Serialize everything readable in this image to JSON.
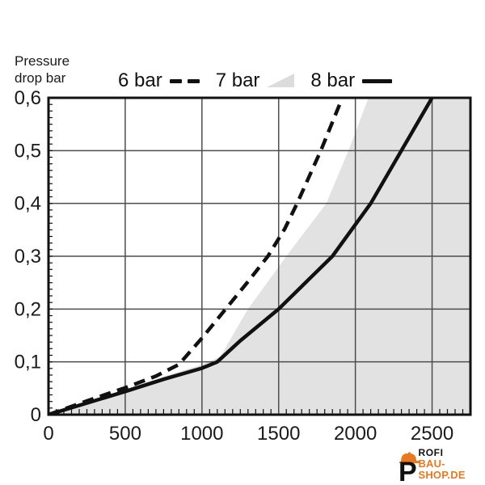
{
  "axis_title": {
    "line1": "Pressure",
    "line2": "drop bar"
  },
  "legend": [
    {
      "label": "6 bar",
      "marker": "dashed-line"
    },
    {
      "label": "7 bar",
      "marker": "gray-area"
    },
    {
      "label": "8 bar",
      "marker": "solid-line"
    }
  ],
  "colors": {
    "curve": "#111111",
    "area_fill": "#e2e2e2",
    "grid": "#4d4d4d",
    "frame": "#111111",
    "tick": "#111111",
    "text": "#1a1a1a",
    "logo_orange": "#e8791e"
  },
  "chart_data": {
    "type": "line",
    "title": "",
    "xlabel": "",
    "ylabel": "Pressure drop bar",
    "xlim": [
      0,
      2750
    ],
    "ylim": [
      0,
      0.6
    ],
    "grid": true,
    "legend_position": "top",
    "x_ticks": [
      {
        "value": 0,
        "label": "0"
      },
      {
        "value": 500,
        "label": "500"
      },
      {
        "value": 1000,
        "label": "1000"
      },
      {
        "value": 1500,
        "label": "1500"
      },
      {
        "value": 2000,
        "label": "2000"
      },
      {
        "value": 2500,
        "label": "2500"
      }
    ],
    "y_ticks": [
      {
        "value": 0,
        "label": "0"
      },
      {
        "value": 0.1,
        "label": "0,1"
      },
      {
        "value": 0.2,
        "label": "0,2"
      },
      {
        "value": 0.3,
        "label": "0,3"
      },
      {
        "value": 0.4,
        "label": "0,4"
      },
      {
        "value": 0.5,
        "label": "0,5"
      },
      {
        "value": 0.6,
        "label": "0,6"
      }
    ],
    "x_minor_step": 50,
    "y_minor_step": 0.0125,
    "series": [
      {
        "name": "6 bar",
        "style": "dashed",
        "points": [
          [
            0,
            0
          ],
          [
            250,
            0.026
          ],
          [
            500,
            0.051
          ],
          [
            700,
            0.073
          ],
          [
            850,
            0.095
          ],
          [
            1000,
            0.145
          ],
          [
            1155,
            0.2
          ],
          [
            1300,
            0.252
          ],
          [
            1430,
            0.3
          ],
          [
            1540,
            0.352
          ],
          [
            1620,
            0.4
          ],
          [
            1775,
            0.5
          ],
          [
            1915,
            0.6
          ]
        ]
      },
      {
        "name": "7 bar",
        "style": "area",
        "points": [
          [
            0,
            0
          ],
          [
            250,
            0.024
          ],
          [
            500,
            0.048
          ],
          [
            750,
            0.072
          ],
          [
            1000,
            0.095
          ],
          [
            1120,
            0.11
          ],
          [
            1300,
            0.2
          ],
          [
            1550,
            0.3
          ],
          [
            1810,
            0.4
          ],
          [
            1955,
            0.5
          ],
          [
            2085,
            0.6
          ]
        ]
      },
      {
        "name": "8 bar",
        "style": "solid",
        "points": [
          [
            0,
            0
          ],
          [
            250,
            0.022
          ],
          [
            500,
            0.044
          ],
          [
            750,
            0.067
          ],
          [
            1000,
            0.088
          ],
          [
            1100,
            0.1
          ],
          [
            1250,
            0.14
          ],
          [
            1500,
            0.2
          ],
          [
            1850,
            0.3
          ],
          [
            2100,
            0.4
          ],
          [
            2300,
            0.5
          ],
          [
            2500,
            0.6
          ]
        ]
      }
    ]
  },
  "logo": {
    "letter": "P",
    "word_rest": "ROFI",
    "line2": "BAU-SHOP.DE"
  }
}
